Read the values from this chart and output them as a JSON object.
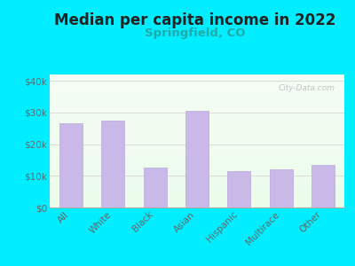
{
  "title": "Median per capita income in 2022",
  "subtitle": "Springfield, CO",
  "categories": [
    "All",
    "White",
    "Black",
    "Asian",
    "Hispanic",
    "Multirace",
    "Other"
  ],
  "values": [
    26500,
    27500,
    12500,
    30500,
    11500,
    12000,
    13500
  ],
  "bar_color": "#c9b8e8",
  "bar_edge_color": "#b8a8d8",
  "title_fontsize": 12,
  "subtitle_fontsize": 9.5,
  "subtitle_color": "#22aaaa",
  "title_color": "#222222",
  "background_color": "#00eeff",
  "ylim": [
    0,
    42000
  ],
  "yticks": [
    0,
    10000,
    20000,
    30000,
    40000
  ],
  "ytick_labels": [
    "$0",
    "$10k",
    "$20k",
    "$30k",
    "$40k"
  ],
  "watermark": "City-Data.com",
  "grid_color": "#dddddd",
  "axis_color": "#aaaaaa"
}
